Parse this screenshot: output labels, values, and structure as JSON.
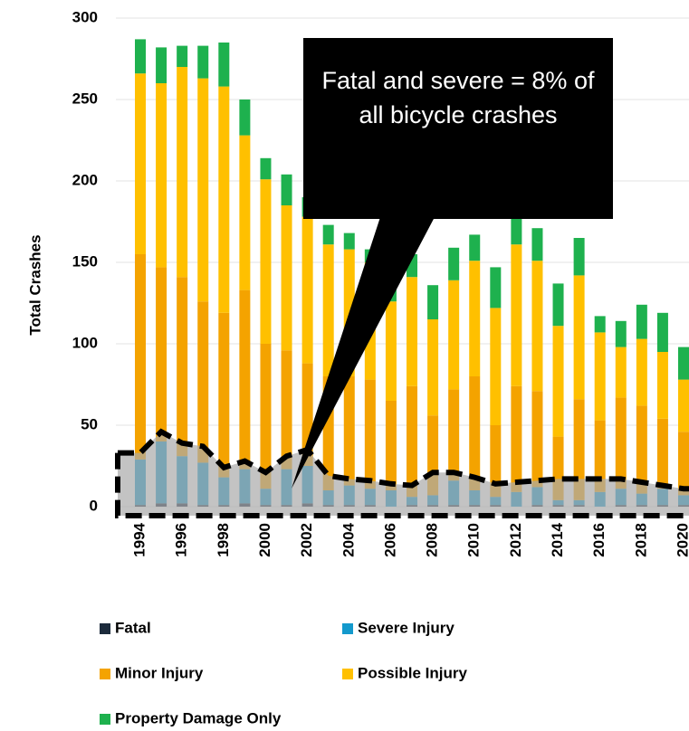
{
  "chart_data": {
    "type": "bar",
    "stacked": true,
    "y_label": "Total Crashes",
    "annotation": "Fatal and severe = 8% of all bicycle crashes",
    "categories": [
      "1994",
      null,
      "1996",
      null,
      "1998",
      null,
      "2000",
      null,
      "2002",
      null,
      "2004",
      null,
      "2006",
      null,
      "2008",
      null,
      "2010",
      null,
      "2012",
      null,
      "2014",
      null,
      "2016",
      null,
      "2018",
      null,
      "2020"
    ],
    "series": [
      {
        "name": "Fatal",
        "color": "#1c2b3c",
        "values": [
          1,
          2,
          2,
          1,
          1,
          2,
          1,
          1,
          2,
          1,
          1,
          1,
          0,
          1,
          1,
          1,
          1,
          1,
          0,
          1,
          1,
          1,
          0,
          1,
          1,
          1,
          1
        ]
      },
      {
        "name": "Severe Injury",
        "color": "#1399cc",
        "values": [
          28,
          38,
          29,
          26,
          17,
          21,
          10,
          22,
          23,
          9,
          12,
          10,
          10,
          5,
          6,
          15,
          9,
          5,
          9,
          11,
          3,
          3,
          9,
          10,
          7,
          10,
          6
        ]
      },
      {
        "name": "Minor Injury",
        "color": "#f4a300",
        "values": [
          126,
          107,
          110,
          99,
          101,
          110,
          89,
          73,
          63,
          70,
          67,
          67,
          55,
          68,
          49,
          56,
          70,
          44,
          65,
          59,
          39,
          62,
          44,
          56,
          54,
          43,
          39
        ]
      },
      {
        "name": "Possible Injury",
        "color": "#ffc000",
        "values": [
          111,
          113,
          129,
          137,
          139,
          95,
          101,
          89,
          90,
          81,
          78,
          72,
          61,
          67,
          59,
          67,
          71,
          72,
          87,
          80,
          68,
          76,
          54,
          31,
          41,
          41,
          32
        ]
      },
      {
        "name": "Property Damage Only",
        "color": "#1eb14e",
        "values": [
          21,
          22,
          13,
          20,
          27,
          22,
          13,
          19,
          12,
          12,
          10,
          8,
          9,
          14,
          21,
          20,
          16,
          25,
          19,
          20,
          26,
          23,
          10,
          16,
          21,
          24,
          20
        ]
      }
    ],
    "overlay": {
      "color": "#a9a9a9",
      "values": [
        33,
        46,
        39,
        37,
        24,
        28,
        21,
        31,
        35,
        19,
        17,
        16,
        14,
        13,
        21,
        21,
        18,
        14,
        15,
        16,
        17,
        17,
        17,
        17,
        15,
        13,
        11
      ]
    },
    "ylim": [
      0,
      300
    ],
    "yticks": [
      0,
      50,
      100,
      150,
      200,
      250,
      300
    ],
    "grid": true
  }
}
